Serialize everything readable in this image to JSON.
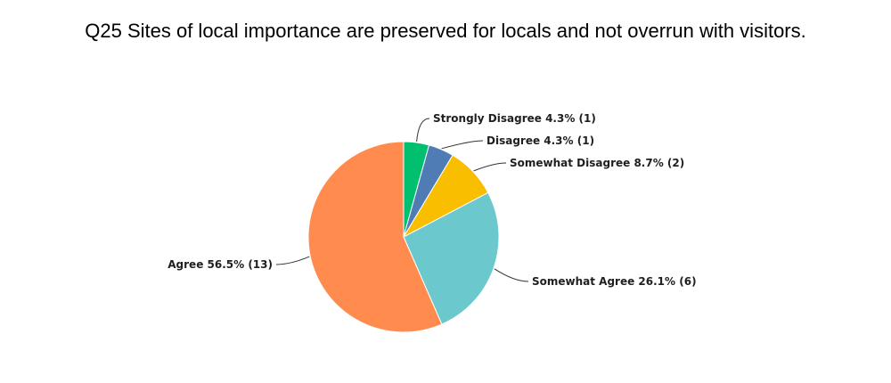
{
  "chart_data": {
    "type": "pie",
    "title": "Q25 Sites of local importance are preserved for locals and not overrun with visitors.",
    "slices": [
      {
        "name": "Strongly Disagree",
        "percent": 4.3,
        "count": 1,
        "color": "#00BF6F",
        "label": "Strongly Disagree 4.3% (1)"
      },
      {
        "name": "Disagree",
        "percent": 4.3,
        "count": 1,
        "color": "#507CB6",
        "label": "Disagree 4.3% (1)"
      },
      {
        "name": "Somewhat Disagree",
        "percent": 8.7,
        "count": 2,
        "color": "#F9BE00",
        "label": "Somewhat Disagree 8.7% (2)"
      },
      {
        "name": "Somewhat Agree",
        "percent": 26.1,
        "count": 6,
        "color": "#6BC8CD",
        "label": "Somewhat Agree 26.1% (6)"
      },
      {
        "name": "Agree",
        "percent": 56.5,
        "count": 13,
        "color": "#FF8B4F",
        "label": "Agree 56.5% (13)"
      }
    ]
  }
}
